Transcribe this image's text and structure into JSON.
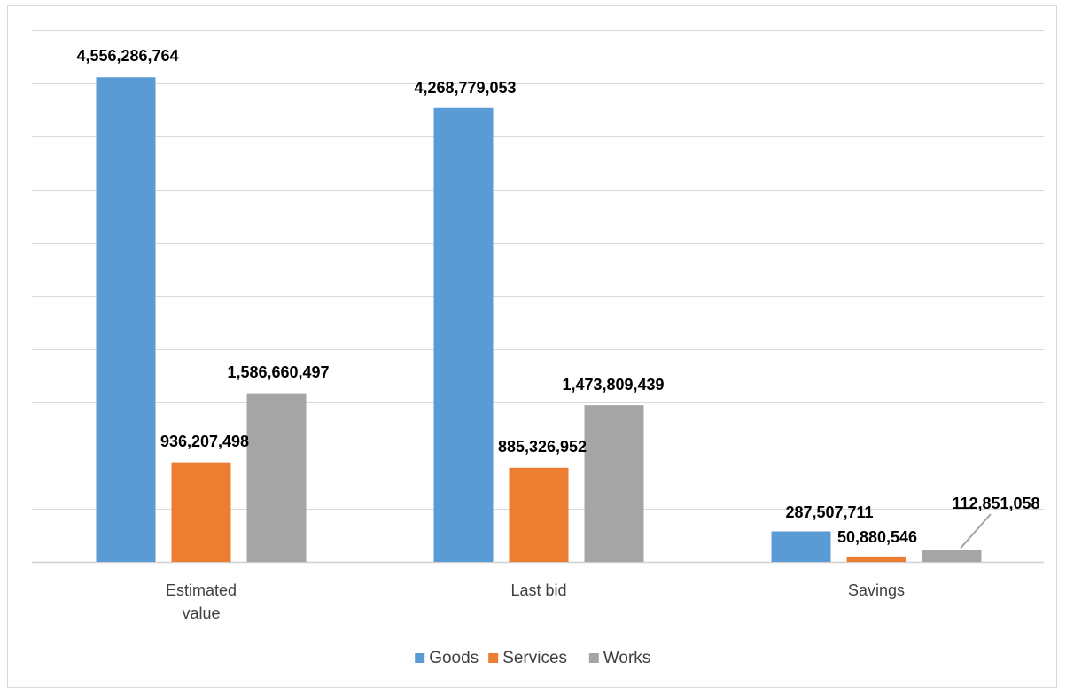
{
  "chart_data": {
    "type": "bar",
    "title": "",
    "xlabel": "",
    "ylabel": "",
    "categories": [
      "Estimated value",
      "Last bid",
      "Savings"
    ],
    "category_lines": [
      [
        "Estimated",
        "value"
      ],
      [
        "Last bid"
      ],
      [
        "Savings"
      ]
    ],
    "series": [
      {
        "name": "Goods",
        "color": "#5b9bd5",
        "values": [
          4556286764,
          4268779053,
          287507711
        ],
        "labels": [
          "4,556,286,764",
          "4,268,779,053",
          "287,507,711"
        ]
      },
      {
        "name": "Services",
        "color": "#ed7d31",
        "values": [
          936207498,
          885326952,
          50880546
        ],
        "labels": [
          "936,207,498",
          "885,326,952",
          "50,880,546"
        ]
      },
      {
        "name": "Works",
        "color": "#a5a5a5",
        "values": [
          1586660497,
          1473809439,
          112851058
        ],
        "labels": [
          "1,586,660,497",
          "1,473,809,439",
          "112,851,058"
        ]
      }
    ],
    "ylim": [
      0,
      5000000000
    ],
    "y_gridline_step": 500000000,
    "grid": true,
    "y_tick_labels_visible": false,
    "legend_position": "bottom"
  }
}
